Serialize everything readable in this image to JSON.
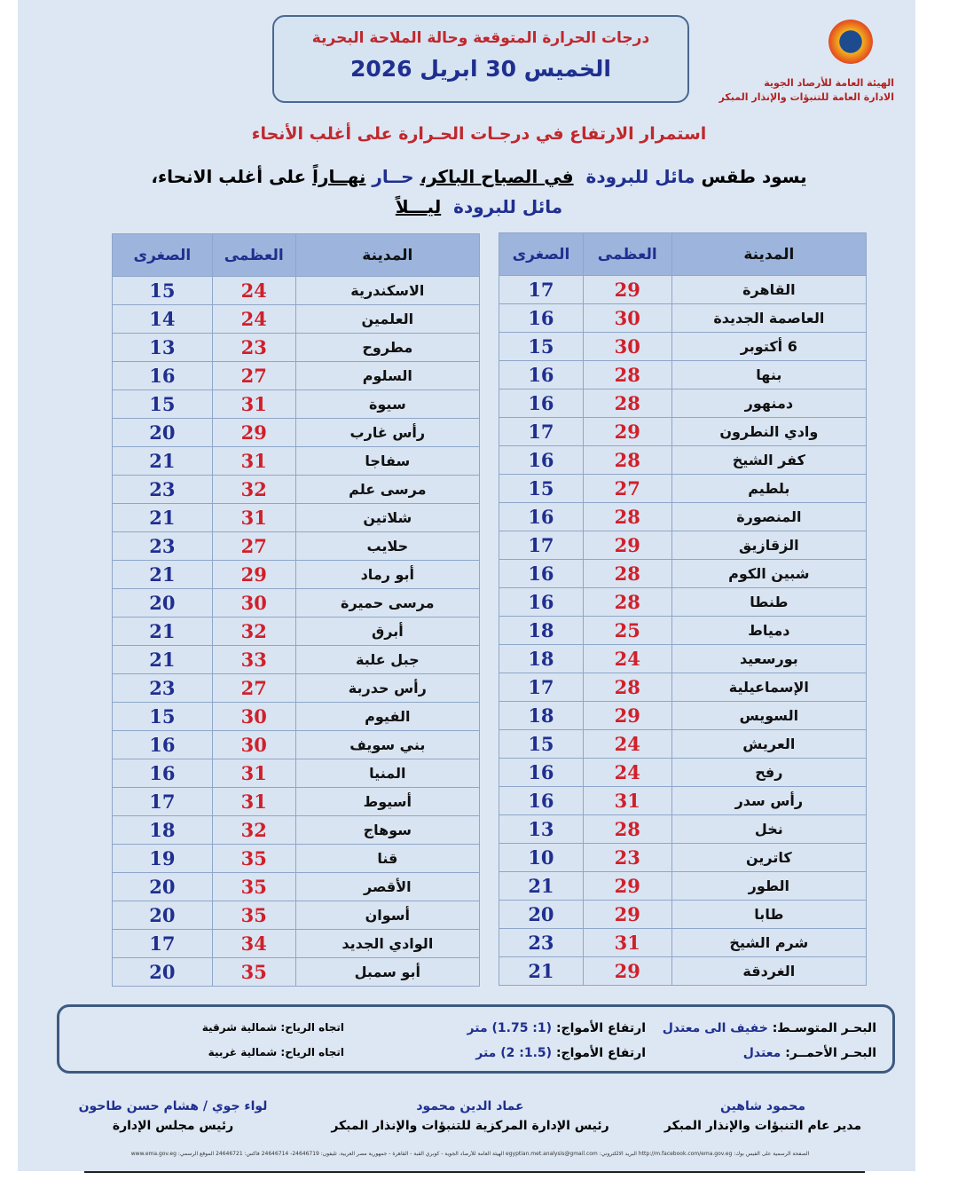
{
  "header": {
    "title": "درجات الحرارة المتوقعة وحالة الملاحة البحرية",
    "date": "الخميس 30 ابريل 2026"
  },
  "org": {
    "line1": "الهيئة العامة للأرصاد الجوية",
    "line2": "الادارة العامة للتنبؤات والإنذار المبكر",
    "logo": "ema-logo"
  },
  "headline": "استمرار الارتفاع في درجـات الحـرارة على أغلب الأنحاء",
  "description": {
    "p1": "يسود طقس",
    "p2": "مائل للبرودة",
    "p3": "في الصباح الباكر،",
    "p4": "حــار",
    "p5": "نهــاراً",
    "p6": "على أغلب الانحاء،",
    "p7": "مائل للبرودة",
    "p8": "ليـــلاً"
  },
  "colors": {
    "max": "#d0202a",
    "min": "#1f2f8f",
    "header_bg": "#9db5dc"
  },
  "table_headers": {
    "city": "المدينة",
    "max": "العظمى",
    "min": "الصغرى"
  },
  "right_table": [
    [
      "القاهرة",
      "29",
      "17"
    ],
    [
      "العاصمة الجديدة",
      "30",
      "16"
    ],
    [
      "6 أكتوبر",
      "30",
      "15"
    ],
    [
      "بنها",
      "28",
      "16"
    ],
    [
      "دمنهور",
      "28",
      "16"
    ],
    [
      "وادي النطرون",
      "29",
      "17"
    ],
    [
      "كفر الشيخ",
      "28",
      "16"
    ],
    [
      "بلطيم",
      "27",
      "15"
    ],
    [
      "المنصورة",
      "28",
      "16"
    ],
    [
      "الزقازيق",
      "29",
      "17"
    ],
    [
      "شبين الكوم",
      "28",
      "16"
    ],
    [
      "طنطا",
      "28",
      "16"
    ],
    [
      "دمياط",
      "25",
      "18"
    ],
    [
      "بورسعيد",
      "24",
      "18"
    ],
    [
      "الإسماعيلية",
      "28",
      "17"
    ],
    [
      "السويس",
      "29",
      "18"
    ],
    [
      "العريش",
      "24",
      "15"
    ],
    [
      "رفح",
      "24",
      "16"
    ],
    [
      "رأس سدر",
      "31",
      "16"
    ],
    [
      "نخل",
      "28",
      "13"
    ],
    [
      "كاترين",
      "23",
      "10"
    ],
    [
      "الطور",
      "29",
      "21"
    ],
    [
      "طابا",
      "29",
      "20"
    ],
    [
      "شرم الشيخ",
      "31",
      "23"
    ],
    [
      "الغردقة",
      "29",
      "21"
    ]
  ],
  "left_table": [
    [
      "الاسكندرية",
      "24",
      "15"
    ],
    [
      "العلمين",
      "24",
      "14"
    ],
    [
      "مطروح",
      "23",
      "13"
    ],
    [
      "السلوم",
      "27",
      "16"
    ],
    [
      "سيوة",
      "31",
      "15"
    ],
    [
      "رأس غارب",
      "29",
      "20"
    ],
    [
      "سفاجا",
      "31",
      "21"
    ],
    [
      "مرسى علم",
      "32",
      "23"
    ],
    [
      "شلاتين",
      "31",
      "21"
    ],
    [
      "حلايب",
      "27",
      "23"
    ],
    [
      "أبو رماد",
      "29",
      "21"
    ],
    [
      "مرسى حميرة",
      "30",
      "20"
    ],
    [
      "أبرق",
      "32",
      "21"
    ],
    [
      "جبل علبة",
      "33",
      "21"
    ],
    [
      "رأس حدربة",
      "27",
      "23"
    ],
    [
      "الفيوم",
      "30",
      "15"
    ],
    [
      "بني سويف",
      "30",
      "16"
    ],
    [
      "المنيا",
      "31",
      "16"
    ],
    [
      "أسيوط",
      "31",
      "17"
    ],
    [
      "سوهاج",
      "32",
      "18"
    ],
    [
      "قنا",
      "35",
      "19"
    ],
    [
      "الأقصر",
      "35",
      "20"
    ],
    [
      "أسوان",
      "35",
      "20"
    ],
    [
      "الوادي الجديد",
      "34",
      "17"
    ],
    [
      "أبو سمبل",
      "35",
      "20"
    ]
  ],
  "sea": {
    "med": {
      "label": "البحـر المتوسـط:",
      "state": "خفيف الى معتدل",
      "waves_label": "ارتفاع الأمواج:",
      "waves": "(1: 1.75) متر",
      "wind_label": "اتجاه الرياح:",
      "wind": "شمالية شرقية"
    },
    "red": {
      "label": "البحـر الأحمــر:",
      "state": "معتدل",
      "waves_label": "ارتفاع الأمواج:",
      "waves": "(1.5: 2) متر",
      "wind_label": "اتجاه الرياح:",
      "wind": "شمالية غربية"
    }
  },
  "signatures": [
    {
      "name": "محمود شاهين",
      "title": "مدير عام التنبؤات والإنذار المبكر"
    },
    {
      "name": "عماد الدين محمود",
      "title": "رئيس الإدارة المركزية للتنبؤات والإنذار المبكر"
    },
    {
      "name": "لواء جوي / هشام حسن طاحون",
      "title": "رئيس مجلس الإدارة"
    }
  ],
  "footer": "الصفحة الرسمية على الفيس بوك: http://m.facebook.com/ema.gov.eg البريد الالكتروني: egyptian.met.analysis@gmail.com الهيئة العامة للأرصاد الجوية - كوبري القبة - القاهرة - جمهورية مصر العربية. تليفون: 24646719- 24646714 فاكس: 24646721 الموقع الرسمي: www.ema.gov.eg"
}
